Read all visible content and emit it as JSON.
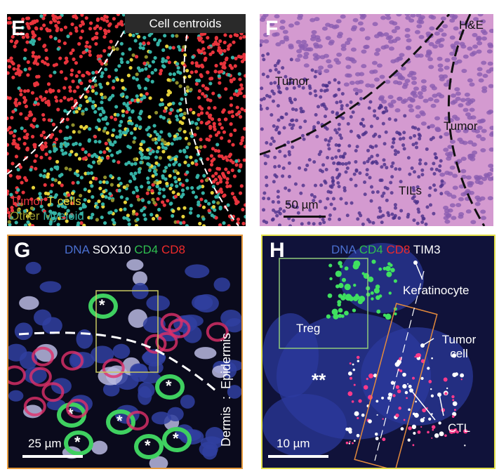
{
  "panels": {
    "E": {
      "letter": "E",
      "badge": "Cell centroids",
      "legend": [
        {
          "label": "Tumor",
          "color": "#e8343c"
        },
        {
          "label": "T cells",
          "color": "#e6d23a"
        },
        {
          "label": "Other",
          "color": "#8f8f2c"
        },
        {
          "label": "Myeloid",
          "color": "#35b3a6"
        }
      ]
    },
    "F": {
      "letter": "F",
      "stain": "H&E",
      "tumor_left": "Tumor",
      "tumor_right": "Tumor",
      "tils": "TILs",
      "scale": "50 µm"
    },
    "G": {
      "letter": "G",
      "channels": [
        {
          "label": "DNA",
          "color": "#4a6fd0"
        },
        {
          "label": "SOX10",
          "color": "#ffffff"
        },
        {
          "label": "CD4",
          "color": "#2fbf4f"
        },
        {
          "label": "CD8",
          "color": "#ee2a2a"
        }
      ],
      "dermis": "Dermis",
      "epidermis": "Epidermis",
      "scale": "25 µm",
      "border_color": "#e69a3c"
    },
    "H": {
      "letter": "H",
      "channels": [
        {
          "label": "DNA",
          "color": "#4a6fd0"
        },
        {
          "label": "CD4",
          "color": "#2fbf4f"
        },
        {
          "label": "CD8",
          "color": "#ee2a2a"
        },
        {
          "label": "TIM3",
          "color": "#ffffff"
        }
      ],
      "keratinocyte": "Keratinocyte",
      "tumor_cell": "Tumor cell",
      "treg": "Treg",
      "ctl": "CTL",
      "double_star": "**",
      "scale": "10 µm",
      "border_color": "#e3e04a"
    }
  }
}
